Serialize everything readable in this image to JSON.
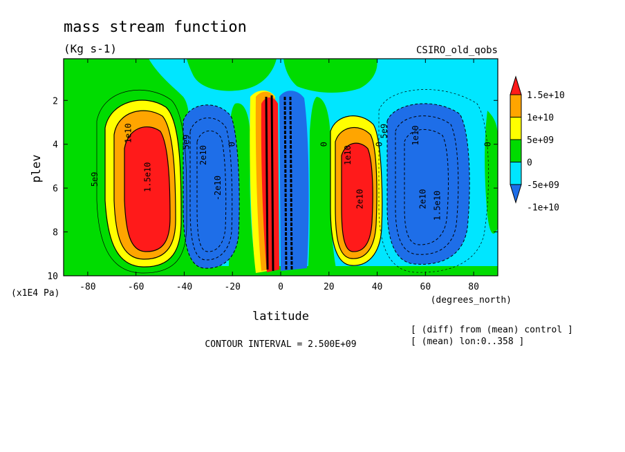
{
  "chart_data": {
    "type": "heatmap",
    "title": "mass stream function",
    "subtitle": "(Kg s-1)",
    "model_label": "CSIRO_old_qobs",
    "xlabel": "latitude",
    "xunit": "(degrees_north)",
    "ylabel": "plev",
    "yunit": "(x1E4 Pa)",
    "x_ticks": [
      -80,
      -60,
      -40,
      -20,
      0,
      20,
      40,
      60,
      80
    ],
    "y_ticks": [
      2,
      4,
      6,
      8,
      10
    ],
    "xlim": [
      -90,
      90
    ],
    "ylim": [
      0.1,
      10
    ],
    "y_inverted": true,
    "contour_interval_label": "CONTOUR INTERVAL = 2.500E+09",
    "notes": [
      "[ (diff) from (mean) control ]",
      "[ (mean) lon:0..358 ]"
    ],
    "colorbar": {
      "labels": [
        "1.5e+10",
        "1e+10",
        "5e+09",
        "0",
        "-5e+09",
        "-1e+10"
      ],
      "levels": [
        -15000000000,
        -10000000000,
        -5000000000,
        0,
        5000000000,
        10000000000,
        15000000000
      ],
      "colors": [
        "#1e6ee8",
        "#00e6ff",
        "#00dc00",
        "#ffff00",
        "#ffa500",
        "#ff1a1a"
      ]
    },
    "contour_labels": [
      {
        "text": "1e10",
        "x": -62,
        "y": 3.5
      },
      {
        "text": "5e9",
        "x": -76,
        "y": 5.6
      },
      {
        "text": "1.5e10",
        "x": -54,
        "y": 5.5
      },
      {
        "text": "5e9",
        "x": -38,
        "y": 3.9
      },
      {
        "text": "2e10",
        "x": -31,
        "y": 4.5
      },
      {
        "text": "-2e10",
        "x": -25,
        "y": 6.0
      },
      {
        "text": "0",
        "x": -19,
        "y": 4.0
      },
      {
        "text": "0",
        "x": 19,
        "y": 4.0
      },
      {
        "text": "1e10",
        "x": 29,
        "y": 4.5
      },
      {
        "text": "2e10",
        "x": 34,
        "y": 6.5
      },
      {
        "text": "0",
        "x": 42,
        "y": 4.0
      },
      {
        "text": "5e9",
        "x": 44,
        "y": 3.4
      },
      {
        "text": "1e10",
        "x": 57,
        "y": 3.6
      },
      {
        "text": "2e10",
        "x": 60,
        "y": 6.5
      },
      {
        "text": "1.5e10",
        "x": 66,
        "y": 6.8
      },
      {
        "text": "0",
        "x": 87,
        "y": 4.0
      }
    ]
  }
}
